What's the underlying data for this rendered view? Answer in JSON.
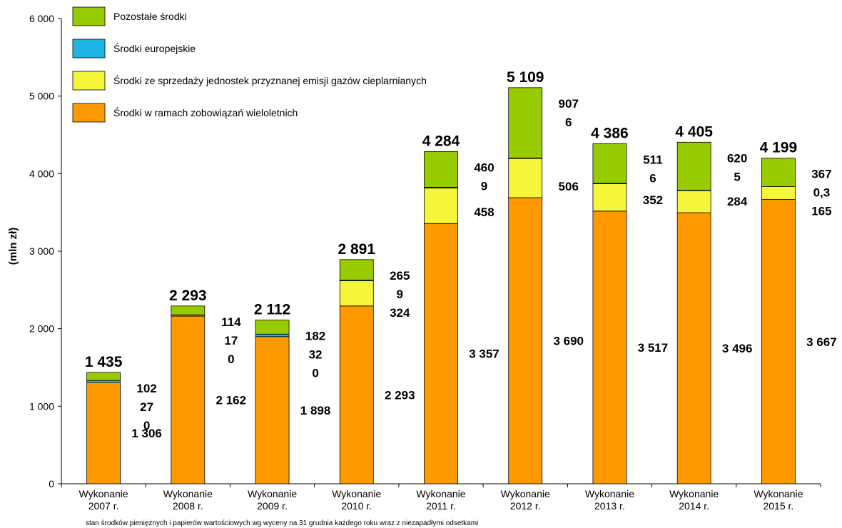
{
  "chart_data": {
    "type": "bar",
    "stacked": true,
    "ylabel": "(mln zł)",
    "ylim": [
      0,
      6000
    ],
    "yticks": [
      0,
      1000,
      2000,
      3000,
      4000,
      5000,
      6000
    ],
    "ytick_labels": [
      "0",
      "1 000",
      "2 000",
      "3 000",
      "4 000",
      "5 000",
      "6 000"
    ],
    "categories": [
      [
        "Wykonanie",
        "2007 r."
      ],
      [
        "Wykonanie",
        "2008 r."
      ],
      [
        "Wykonanie",
        "2009 r."
      ],
      [
        "Wykonanie",
        "2010 r."
      ],
      [
        "Wykonanie",
        "2011 r."
      ],
      [
        "Wykonanie",
        "2012 r."
      ],
      [
        "Wykonanie",
        "2013 r."
      ],
      [
        "Wykonanie",
        "2014 r."
      ],
      [
        "Wykonanie",
        "2015 r."
      ]
    ],
    "series": [
      {
        "name": "Środki w ramach zobowiązań wieloletnich",
        "color": "#FF9900",
        "values": [
          1306,
          2162,
          1898,
          2293,
          3357,
          3690,
          3517,
          3496,
          3667
        ],
        "labels": [
          "1 306",
          "2 162",
          "1 898",
          "2 293",
          "3 357",
          "3 690",
          "3 517",
          "3 496",
          "3 667"
        ]
      },
      {
        "name": "Środki ze sprzedaży jednostek przyznanej emisji gazów cieplarnianych",
        "color": "#F5F53A",
        "values": [
          0,
          0,
          0,
          324,
          458,
          506,
          352,
          284,
          165
        ],
        "labels": [
          "0",
          "0",
          "0",
          "324",
          "458",
          "506",
          "352",
          "284",
          "165"
        ]
      },
      {
        "name": "Środki europejskie",
        "color": "#1EB4E6",
        "values": [
          27,
          17,
          32,
          9,
          9,
          6,
          6,
          5,
          0.3
        ],
        "labels": [
          "27",
          "17",
          "32",
          "9",
          "9",
          "6",
          "6",
          "5",
          "0,3"
        ]
      },
      {
        "name": "Pozostałe środki",
        "color": "#99CC00",
        "values": [
          102,
          114,
          182,
          265,
          460,
          907,
          511,
          620,
          367
        ],
        "labels": [
          "102",
          "114",
          "182",
          "265",
          "460",
          "907",
          "511",
          "620",
          "367"
        ]
      }
    ],
    "totals": [
      1435,
      2293,
      2112,
      2891,
      4284,
      5109,
      4386,
      4405,
      4199
    ],
    "total_labels": [
      "1 435",
      "2 293",
      "2 112",
      "2 891",
      "4 284",
      "5 109",
      "4 386",
      "4 405",
      "4 199"
    ],
    "legend_order": [
      "Pozostałe środki",
      "Środki europejskie",
      "Środki ze sprzedaży jednostek przyznanej emisji gazów cieplarnianych",
      "Środki w ramach zobowiązań wieloletnich"
    ],
    "legend_position": "top-left",
    "grid": false,
    "footnote": "stan środków pieniężnych i papierów wartościowych wg wyceny na 31 grudnia każdego roku wraz z niezapadłymi odsetkami"
  }
}
